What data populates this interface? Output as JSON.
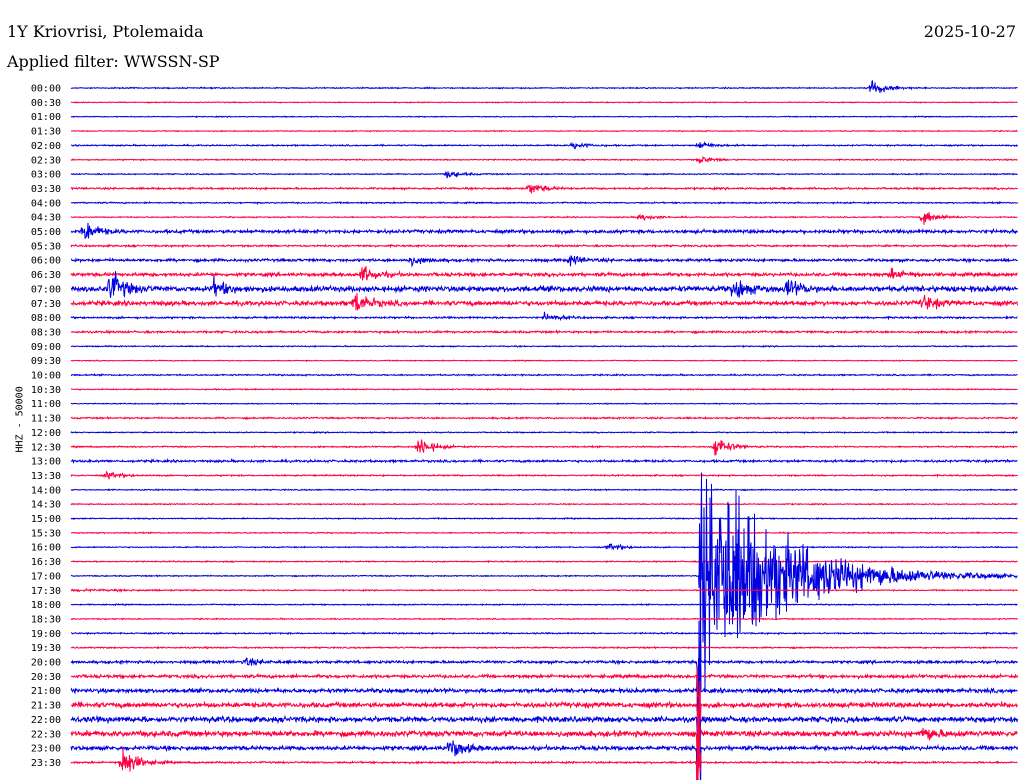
{
  "header": {
    "station": "1Y Kriovrisi, Ptolemaida",
    "date": "2025-10-27",
    "filter": "Applied filter: WWSSN-SP"
  },
  "chart_data": {
    "type": "line",
    "title": "1Y Kriovrisi, Ptolemaida",
    "subtitle": "Applied filter: WWSSN-SP",
    "ylabel": "HHZ - 50000",
    "colors": [
      "#0000e0",
      "#ff0040"
    ],
    "rows": [
      "00:00",
      "00:30",
      "01:00",
      "01:30",
      "02:00",
      "02:30",
      "03:00",
      "03:30",
      "04:00",
      "04:30",
      "05:00",
      "05:30",
      "06:00",
      "06:30",
      "07:00",
      "07:30",
      "08:00",
      "08:30",
      "09:00",
      "09:30",
      "10:00",
      "10:30",
      "11:00",
      "11:30",
      "12:00",
      "12:30",
      "13:00",
      "13:30",
      "14:00",
      "14:30",
      "15:00",
      "15:30",
      "16:00",
      "16:30",
      "17:00",
      "17:30",
      "18:00",
      "18:30",
      "19:00",
      "19:30",
      "20:00",
      "20:30",
      "21:00",
      "21:30",
      "22:00",
      "22:30",
      "23:00",
      "23:30"
    ],
    "noise_levels": [
      0.5,
      0.4,
      0.4,
      0.4,
      0.6,
      0.5,
      0.5,
      0.8,
      0.6,
      0.5,
      1.5,
      0.8,
      1.2,
      1.5,
      2.5,
      2.0,
      0.8,
      0.9,
      0.5,
      0.4,
      0.6,
      0.5,
      0.4,
      0.7,
      0.5,
      0.6,
      1.0,
      0.6,
      0.5,
      0.5,
      0.5,
      0.5,
      0.5,
      0.5,
      0.5,
      0.5,
      0.5,
      0.5,
      0.6,
      0.6,
      1.2,
      1.4,
      1.8,
      2.2,
      2.5,
      2.5,
      1.8,
      0.8
    ],
    "events": [
      {
        "row": "00:00",
        "minute": 25.4,
        "amp": 7
      },
      {
        "row": "02:00",
        "minute": 15.9,
        "amp": 3
      },
      {
        "row": "02:00",
        "minute": 19.9,
        "amp": 3
      },
      {
        "row": "02:30",
        "minute": 19.9,
        "amp": 3
      },
      {
        "row": "03:00",
        "minute": 11.9,
        "amp": 3
      },
      {
        "row": "03:30",
        "minute": 14.5,
        "amp": 5
      },
      {
        "row": "04:30",
        "minute": 18.0,
        "amp": 3
      },
      {
        "row": "04:30",
        "minute": 27.0,
        "amp": 6
      },
      {
        "row": "05:00",
        "minute": 0.4,
        "amp": 8
      },
      {
        "row": "06:00",
        "minute": 10.7,
        "amp": 4
      },
      {
        "row": "06:00",
        "minute": 15.8,
        "amp": 4
      },
      {
        "row": "06:30",
        "minute": 9.2,
        "amp": 7
      },
      {
        "row": "06:30",
        "minute": 26.0,
        "amp": 4
      },
      {
        "row": "07:00",
        "minute": 1.2,
        "amp": 14
      },
      {
        "row": "07:00",
        "minute": 4.5,
        "amp": 6
      },
      {
        "row": "07:00",
        "minute": 21.0,
        "amp": 9
      },
      {
        "row": "07:00",
        "minute": 22.7,
        "amp": 7
      },
      {
        "row": "07:30",
        "minute": 9.0,
        "amp": 9
      },
      {
        "row": "07:30",
        "minute": 27.0,
        "amp": 6
      },
      {
        "row": "08:00",
        "minute": 15.0,
        "amp": 3
      },
      {
        "row": "12:30",
        "minute": 11.0,
        "amp": 9
      },
      {
        "row": "12:30",
        "minute": 20.4,
        "amp": 9
      },
      {
        "row": "13:30",
        "minute": 1.1,
        "amp": 3
      },
      {
        "row": "16:00",
        "minute": 17.0,
        "amp": 3
      },
      {
        "row": "20:00",
        "minute": 5.5,
        "amp": 3
      },
      {
        "row": "22:30",
        "minute": 27.0,
        "amp": 6
      },
      {
        "row": "23:00",
        "minute": 12.0,
        "amp": 9
      },
      {
        "row": "23:30",
        "minute": 1.6,
        "amp": 14
      }
    ],
    "major_event": {
      "row": "17:00",
      "minute": 19.9,
      "peak_amp": 100,
      "duration_min": 10
    },
    "grid": false
  }
}
